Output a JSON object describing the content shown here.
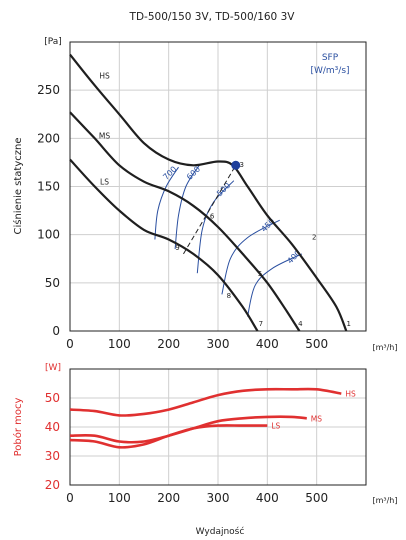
{
  "chart_data": [
    {
      "type": "line",
      "title": "TD-500/150 3V, TD-500/160 3V",
      "ylabel": "Ciśnienie statyczne",
      "yunit": "[Pa]",
      "xunit": "[m³/h]",
      "xlim": [
        0,
        600
      ],
      "ylim": [
        0,
        300
      ],
      "xticks": [
        0,
        100,
        200,
        300,
        400,
        500
      ],
      "yticks": [
        0,
        50,
        100,
        150,
        200,
        250
      ],
      "grid": true,
      "series": [
        {
          "name": "HS",
          "color": "#1f1f1f",
          "x": [
            0,
            50,
            100,
            150,
            200,
            250,
            300,
            330,
            360,
            400,
            450,
            500,
            540,
            560
          ],
          "y": [
            287,
            255,
            225,
            195,
            178,
            172,
            176,
            172,
            150,
            120,
            90,
            55,
            25,
            0
          ]
        },
        {
          "name": "MS",
          "color": "#1f1f1f",
          "x": [
            0,
            50,
            100,
            150,
            200,
            250,
            300,
            350,
            400,
            440,
            465
          ],
          "y": [
            227,
            200,
            172,
            155,
            145,
            130,
            108,
            80,
            50,
            20,
            0
          ]
        },
        {
          "name": "LS",
          "color": "#1f1f1f",
          "x": [
            0,
            50,
            100,
            150,
            200,
            250,
            300,
            350,
            380
          ],
          "y": [
            178,
            150,
            125,
            105,
            95,
            80,
            58,
            25,
            0
          ]
        }
      ],
      "curve_labels": [
        {
          "text": "HS",
          "x": 70,
          "y": 262
        },
        {
          "text": "MS",
          "x": 70,
          "y": 200
        },
        {
          "text": "LS",
          "x": 70,
          "y": 152
        }
      ],
      "point_labels": [
        {
          "text": "1",
          "x": 565,
          "y": 5
        },
        {
          "text": "2",
          "x": 495,
          "y": 95
        },
        {
          "text": "3",
          "x": 348,
          "y": 170
        },
        {
          "text": "4",
          "x": 467,
          "y": 5
        },
        {
          "text": "5",
          "x": 385,
          "y": 57
        },
        {
          "text": "6",
          "x": 288,
          "y": 117
        },
        {
          "text": "7",
          "x": 387,
          "y": 5
        },
        {
          "text": "8",
          "x": 322,
          "y": 34
        },
        {
          "text": "9",
          "x": 218,
          "y": 84
        }
      ],
      "operating_point": {
        "x": 336,
        "y": 172
      },
      "system_line": {
        "x": [
          230,
          336
        ],
        "y": [
          80,
          172
        ]
      },
      "sfp": {
        "title": "SFP",
        "unit": "[W/m³/s]",
        "color": "#2a4fa0",
        "lines": [
          {
            "label": "700",
            "x": [
              220,
              195,
              178,
              172
            ],
            "y": [
              170,
              150,
              125,
              95
            ]
          },
          {
            "label": "600",
            "x": [
              262,
              235,
              220,
              213
            ],
            "y": [
              172,
              150,
              120,
              85
            ]
          },
          {
            "label": "500",
            "x": [
              332,
              290,
              268,
              258
            ],
            "y": [
              156,
              133,
              105,
              60
            ]
          },
          {
            "label": "450",
            "x": [
              425,
              360,
              325,
              308
            ],
            "y": [
              115,
              97,
              75,
              38
            ]
          },
          {
            "label": "400",
            "x": [
              470,
              410,
              375,
              360
            ],
            "y": [
              80,
              65,
              47,
              15
            ]
          }
        ],
        "line_labels": [
          {
            "text": "700",
            "x": 206,
            "y": 162
          },
          {
            "text": "600",
            "x": 254,
            "y": 162
          },
          {
            "text": "500",
            "x": 315,
            "y": 145
          },
          {
            "text": "450",
            "x": 405,
            "y": 108
          },
          {
            "text": "400",
            "x": 458,
            "y": 75
          }
        ]
      }
    },
    {
      "type": "line",
      "ylabel": "Pobór mocy",
      "yunit": "[W]",
      "xlabel": "Wydajność",
      "xunit": "[m³/h]",
      "xlim": [
        0,
        600
      ],
      "ylim": [
        20,
        60
      ],
      "xticks": [
        0,
        100,
        200,
        300,
        400,
        500
      ],
      "yticks": [
        20,
        30,
        40,
        50
      ],
      "grid": true,
      "series": [
        {
          "name": "HS",
          "color": "#e03030",
          "x": [
            0,
            50,
            100,
            150,
            200,
            250,
            300,
            350,
            400,
            450,
            500,
            550
          ],
          "y": [
            46,
            45.5,
            44,
            44.5,
            46,
            48.5,
            51,
            52.5,
            53,
            53,
            53,
            51.5
          ]
        },
        {
          "name": "MS",
          "color": "#e03030",
          "x": [
            0,
            50,
            100,
            150,
            200,
            250,
            300,
            350,
            400,
            450,
            480
          ],
          "y": [
            37,
            37,
            35,
            35,
            37,
            39.5,
            42,
            43,
            43.5,
            43.5,
            43
          ]
        },
        {
          "name": "LS",
          "color": "#e03030",
          "x": [
            0,
            50,
            100,
            150,
            200,
            250,
            300,
            350,
            400
          ],
          "y": [
            35.5,
            35,
            33,
            34,
            37,
            39.5,
            40.5,
            40.5,
            40.5
          ]
        }
      ]
    }
  ]
}
